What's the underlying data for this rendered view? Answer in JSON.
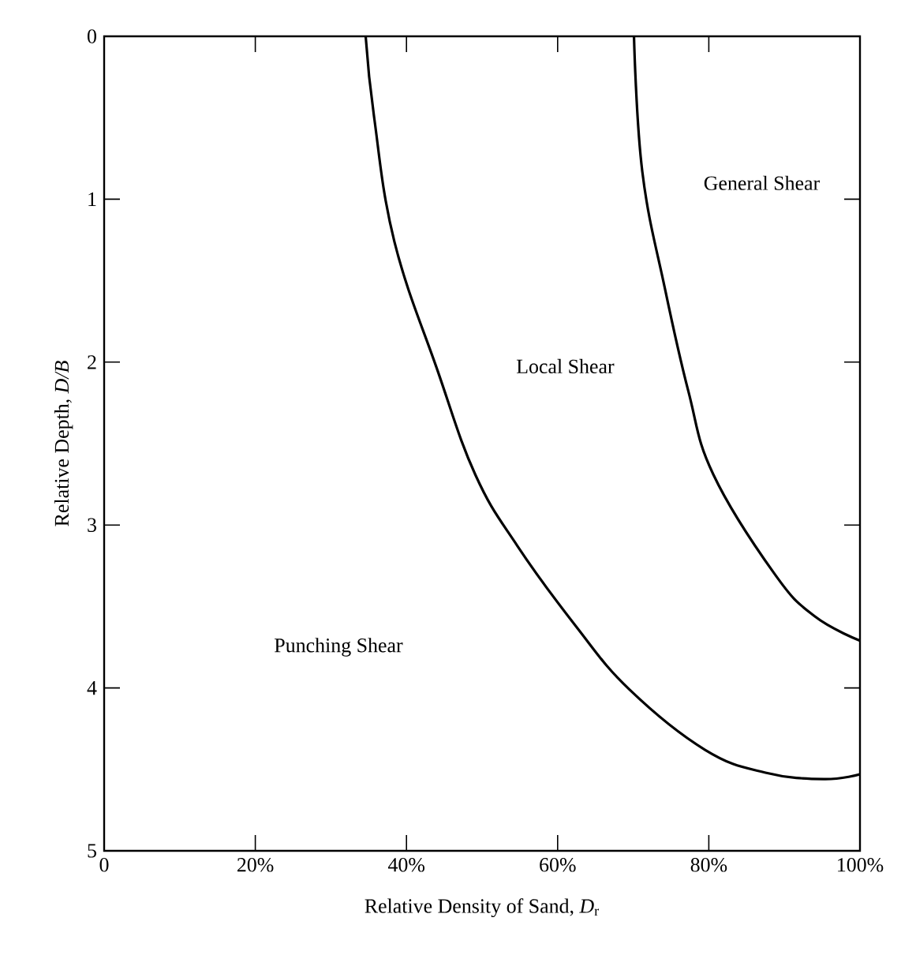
{
  "chart_data": {
    "type": "line",
    "xlabel": "Relative Density of Sand, *D*$_{r}$",
    "ylabel": "Relative Depth, *D/B*",
    "xlim": [
      0,
      100
    ],
    "ylim": [
      5,
      0
    ],
    "xticks": [
      0,
      {
        "value": 20,
        "label": "20%"
      },
      {
        "value": 40,
        "label": "40%"
      },
      {
        "value": 60,
        "label": "60%"
      },
      {
        "value": 80,
        "label": "80%"
      },
      {
        "value": 100,
        "label": "100%"
      }
    ],
    "yticks": [
      0,
      1,
      2,
      3,
      4,
      5
    ],
    "grid": false,
    "marker": "none",
    "line_style": "solid",
    "series": [
      {
        "color": "#000000",
        "x": [
          34.6,
          35.7,
          38.4,
          44.1,
          49.1,
          54.7,
          62.4,
          69.5,
          79.5,
          87.5,
          95.2,
          100
        ],
        "values": [
          0,
          0.49,
          1.26,
          2.05,
          2.69,
          3.13,
          3.62,
          4.01,
          4.38,
          4.52,
          4.56,
          4.53
        ]
      },
      {
        "color": "#000000",
        "x": [
          70.1,
          71.2,
          74.2,
          77.3,
          80.6,
          88.7,
          94.0,
          100
        ],
        "values": [
          0,
          0.83,
          1.55,
          2.18,
          2.69,
          3.3,
          3.56,
          3.71
        ]
      }
    ],
    "annotations": [
      "General Shear",
      "Local Shear",
      "Punching Shear"
    ]
  }
}
